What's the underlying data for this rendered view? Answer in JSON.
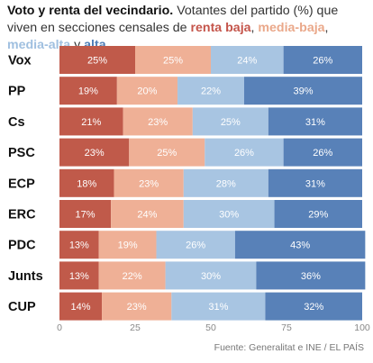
{
  "header": {
    "title": "Voto y renta del vecindario.",
    "text1": "Votantes del partido (%) que viven en secciones censales de",
    "legend": [
      {
        "label": "renta baja",
        "color": "#c4544a"
      },
      {
        "sep": ", "
      },
      {
        "label": "media-baja",
        "color": "#eaa88a"
      },
      {
        "sep": ", "
      },
      {
        "label": "media-alta",
        "color": "#a0c0e0"
      },
      {
        "sep": " y "
      },
      {
        "label": "alta",
        "color": "#4f7fb8"
      }
    ]
  },
  "source": "Fuente: Generalitat e INE / EL PAÍS",
  "chart_data": {
    "type": "bar",
    "orientation": "horizontal",
    "stacked": true,
    "categories": [
      "Vox",
      "PP",
      "Cs",
      "PSC",
      "ECP",
      "ERC",
      "PDC",
      "Junts",
      "CUP"
    ],
    "series": [
      {
        "name": "renta baja",
        "color": "#c05a4a",
        "values": [
          25,
          19,
          21,
          23,
          18,
          17,
          13,
          13,
          14
        ]
      },
      {
        "name": "media-baja",
        "color": "#efb096",
        "values": [
          25,
          20,
          23,
          25,
          23,
          24,
          19,
          22,
          23
        ]
      },
      {
        "name": "media-alta",
        "color": "#a8c5e2",
        "values": [
          24,
          22,
          25,
          26,
          28,
          30,
          26,
          30,
          31
        ]
      },
      {
        "name": "alta",
        "color": "#5881b8",
        "values": [
          26,
          39,
          31,
          26,
          31,
          29,
          43,
          36,
          32
        ]
      }
    ],
    "label_suffix": "%",
    "xlim": [
      0,
      100
    ],
    "xticks": [
      0,
      25,
      50,
      75,
      100
    ],
    "grid": false,
    "legend": "inline in header text"
  }
}
